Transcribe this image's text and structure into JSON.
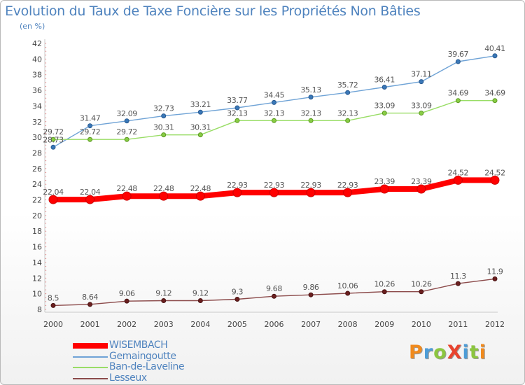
{
  "title": "Evolution du Taux de Taxe Foncière sur les Propriétés Non Bâties",
  "unit_label": "(en %)",
  "logo": {
    "text": "ProXiti",
    "letter_colors": [
      "#f08a1d",
      "#4d9cd6",
      "#8cc63f",
      "#e8432e",
      "#4d9cd6",
      "#8cc63f",
      "#f08a1d"
    ]
  },
  "chart_data": {
    "type": "line",
    "title": "Evolution du Taux de Taxe Foncière sur les Propriétés Non Bâties",
    "ylabel": "(en %)",
    "x": [
      "2000",
      "2001",
      "2002",
      "2003",
      "2004",
      "2005",
      "2006",
      "2007",
      "2008",
      "2009",
      "2010",
      "2011",
      "2012"
    ],
    "ylim": [
      8,
      42
    ],
    "yticks": [
      8,
      10,
      12,
      14,
      16,
      18,
      20,
      22,
      24,
      26,
      28,
      30,
      32,
      34,
      36,
      38,
      40,
      42
    ],
    "grid": false,
    "legend_position": "bottom-left",
    "series": [
      {
        "name": "WISEMBACH",
        "color": "#ff0000",
        "values": [
          22.04,
          22.04,
          22.48,
          22.48,
          22.48,
          22.93,
          22.93,
          22.93,
          22.93,
          23.39,
          23.39,
          24.52,
          24.52
        ],
        "labels": [
          "22.04",
          "22.04",
          "22.48",
          "22.48",
          "22.48",
          "22.93",
          "22.93",
          "22.93",
          "22.93",
          "23.39",
          "23.39",
          "24.52",
          "24.52"
        ]
      },
      {
        "name": "Gemaingoutte",
        "color": "#6fa3d6",
        "values": [
          28.73,
          31.47,
          32.09,
          32.73,
          33.21,
          33.77,
          34.45,
          35.13,
          35.72,
          36.41,
          37.11,
          39.67,
          40.41
        ],
        "labels": [
          "28.73",
          "31.47",
          "32.09",
          "32.73",
          "33.21",
          "33.77",
          "34.45",
          "35.13",
          "35.72",
          "36.41",
          "37.11",
          "39.67",
          "40.41"
        ]
      },
      {
        "name": "Ban-de-Laveline",
        "color": "#99dd66",
        "values": [
          29.72,
          29.72,
          29.72,
          30.31,
          30.31,
          32.13,
          32.13,
          32.13,
          32.13,
          33.09,
          33.09,
          34.69,
          34.69
        ],
        "labels": [
          "29.72",
          "29.72",
          "29.72",
          "30.31",
          "30.31",
          "32.13",
          "32.13",
          "32.13",
          "32.13",
          "33.09",
          "33.09",
          "34.69",
          "34.69"
        ]
      },
      {
        "name": "Lesseux",
        "color": "#8b4a4a",
        "values": [
          8.5,
          8.64,
          9.06,
          9.12,
          9.12,
          9.3,
          9.68,
          9.86,
          10.06,
          10.26,
          10.26,
          11.3,
          11.9
        ],
        "labels": [
          "8.5",
          "8.64",
          "9.06",
          "9.12",
          "9.12",
          "9.3",
          "9.68",
          "9.86",
          "10.06",
          "10.26",
          "10.26",
          "11.3",
          "11.9"
        ]
      }
    ]
  }
}
